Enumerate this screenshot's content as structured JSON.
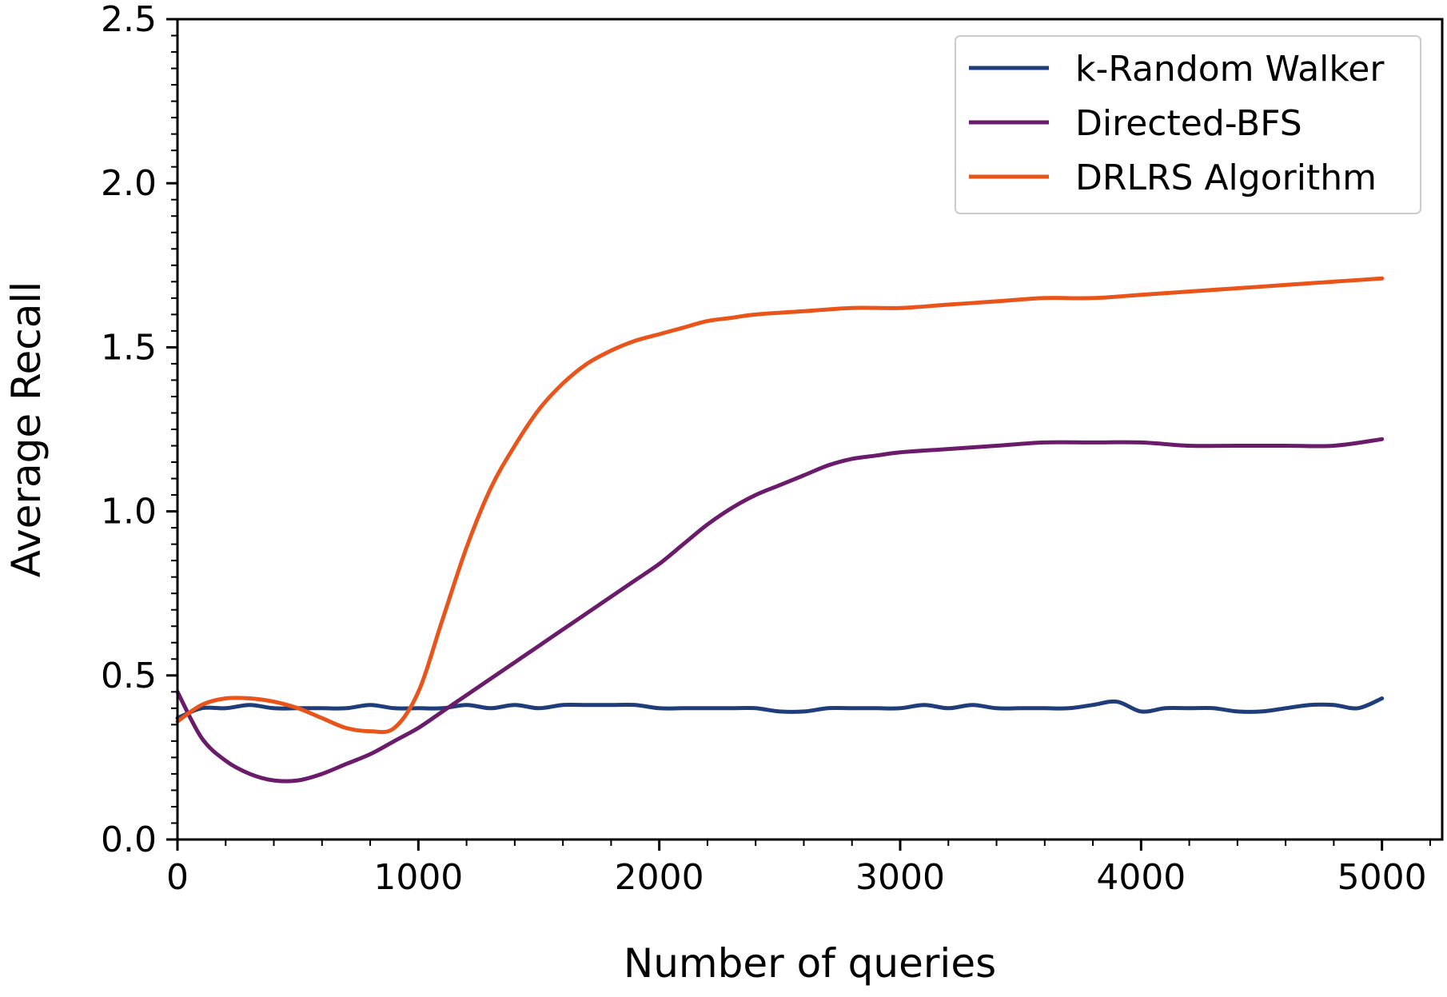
{
  "chart_data": {
    "type": "line",
    "title": "",
    "xlabel": "Number of queries",
    "ylabel": "Average Recall",
    "xlim": [
      0,
      5250
    ],
    "ylim": [
      0,
      2.5
    ],
    "xticks": [
      0,
      1000,
      2000,
      3000,
      4000,
      5000
    ],
    "xtick_labels": [
      "0",
      "1000",
      "2000",
      "3000",
      "4000",
      "5000"
    ],
    "yticks": [
      0.0,
      0.5,
      1.0,
      1.5,
      2.0,
      2.5
    ],
    "ytick_labels": [
      "0.0",
      "0.5",
      "1.0",
      "1.5",
      "2.0",
      "2.5"
    ],
    "grid": false,
    "legend_position": "top-right",
    "series": [
      {
        "name": "k-Random Walker",
        "color": "#1f3d7a",
        "x": [
          0,
          100,
          200,
          300,
          400,
          500,
          600,
          700,
          800,
          900,
          1000,
          1100,
          1200,
          1300,
          1400,
          1500,
          1600,
          1700,
          1800,
          1900,
          2000,
          2100,
          2200,
          2300,
          2400,
          2500,
          2600,
          2700,
          2800,
          2900,
          3000,
          3100,
          3200,
          3300,
          3400,
          3500,
          3600,
          3700,
          3800,
          3900,
          4000,
          4100,
          4200,
          4300,
          4400,
          4500,
          4600,
          4700,
          4800,
          4900,
          5000
        ],
        "y": [
          0.37,
          0.4,
          0.4,
          0.41,
          0.4,
          0.4,
          0.4,
          0.4,
          0.41,
          0.4,
          0.4,
          0.4,
          0.41,
          0.4,
          0.41,
          0.4,
          0.41,
          0.41,
          0.41,
          0.41,
          0.4,
          0.4,
          0.4,
          0.4,
          0.4,
          0.39,
          0.39,
          0.4,
          0.4,
          0.4,
          0.4,
          0.41,
          0.4,
          0.41,
          0.4,
          0.4,
          0.4,
          0.4,
          0.41,
          0.42,
          0.39,
          0.4,
          0.4,
          0.4,
          0.39,
          0.39,
          0.4,
          0.41,
          0.41,
          0.4,
          0.43
        ]
      },
      {
        "name": "Directed-BFS",
        "color": "#6a1b6a",
        "x": [
          0,
          100,
          200,
          300,
          400,
          500,
          600,
          700,
          800,
          900,
          1000,
          1100,
          1200,
          1300,
          1400,
          1500,
          1600,
          1700,
          1800,
          1900,
          2000,
          2100,
          2200,
          2300,
          2400,
          2500,
          2600,
          2700,
          2800,
          2900,
          3000,
          3200,
          3400,
          3600,
          3800,
          4000,
          4200,
          4400,
          4600,
          4800,
          5000
        ],
        "y": [
          0.45,
          0.31,
          0.24,
          0.2,
          0.18,
          0.18,
          0.2,
          0.23,
          0.26,
          0.3,
          0.34,
          0.39,
          0.44,
          0.49,
          0.54,
          0.59,
          0.64,
          0.69,
          0.74,
          0.79,
          0.84,
          0.9,
          0.96,
          1.01,
          1.05,
          1.08,
          1.11,
          1.14,
          1.16,
          1.17,
          1.18,
          1.19,
          1.2,
          1.21,
          1.21,
          1.21,
          1.2,
          1.2,
          1.2,
          1.2,
          1.22
        ]
      },
      {
        "name": "DRLRS Algorithm",
        "color": "#e8541a",
        "x": [
          0,
          100,
          200,
          300,
          400,
          500,
          600,
          700,
          800,
          900,
          1000,
          1100,
          1200,
          1300,
          1400,
          1500,
          1600,
          1700,
          1800,
          1900,
          2000,
          2100,
          2200,
          2300,
          2400,
          2600,
          2800,
          3000,
          3200,
          3400,
          3600,
          3800,
          4000,
          4200,
          4400,
          4600,
          4800,
          5000
        ],
        "y": [
          0.36,
          0.41,
          0.43,
          0.43,
          0.42,
          0.4,
          0.37,
          0.34,
          0.33,
          0.34,
          0.45,
          0.67,
          0.89,
          1.07,
          1.2,
          1.31,
          1.39,
          1.45,
          1.49,
          1.52,
          1.54,
          1.56,
          1.58,
          1.59,
          1.6,
          1.61,
          1.62,
          1.62,
          1.63,
          1.64,
          1.65,
          1.65,
          1.66,
          1.67,
          1.68,
          1.69,
          1.7,
          1.71
        ]
      }
    ]
  }
}
